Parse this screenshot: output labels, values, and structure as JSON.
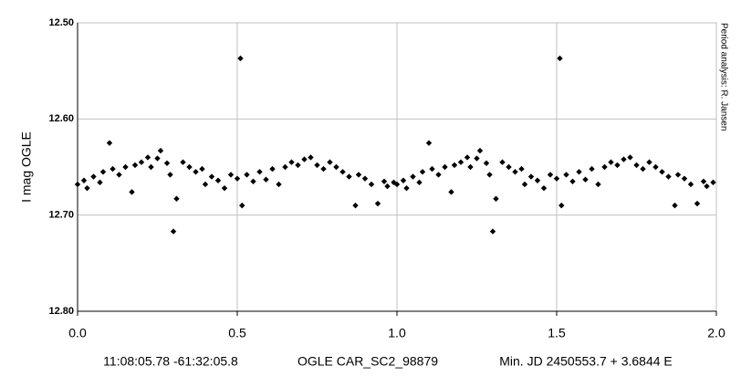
{
  "chart_data": {
    "type": "scatter",
    "y_label": "I mag OGLE",
    "side_note": "Period analysis: R. Jansen",
    "footer": [
      "11:08:05.78 -61:32:05.8",
      "OGLE CAR_SC2_98879",
      "Min. JD 2450553.7 + 3.6844 E"
    ],
    "color": "#000000",
    "grid": true,
    "y_inverted": true,
    "xlim": [
      0,
      2
    ],
    "xticks": [
      {
        "value": 0,
        "label": "0.0"
      },
      {
        "value": 0.5,
        "label": "0.5"
      },
      {
        "value": 1,
        "label": "1.0"
      },
      {
        "value": 1.5,
        "label": "1.5"
      },
      {
        "value": 2,
        "label": "2.0"
      }
    ],
    "ylim": [
      12.5,
      12.8
    ],
    "yticks": [
      {
        "value": 12.5,
        "label": "12.50"
      },
      {
        "value": 12.6,
        "label": "12.60"
      },
      {
        "value": 12.7,
        "label": "12.70"
      },
      {
        "value": 12.8,
        "label": "12.80"
      }
    ],
    "x": [
      0.0,
      0.02,
      0.03,
      0.05,
      0.07,
      0.08,
      0.1,
      0.11,
      0.13,
      0.15,
      0.17,
      0.18,
      0.2,
      0.22,
      0.23,
      0.25,
      0.26,
      0.28,
      0.29,
      0.3,
      0.31,
      0.33,
      0.35,
      0.37,
      0.39,
      0.4,
      0.42,
      0.44,
      0.46,
      0.48,
      0.5,
      0.51,
      0.515,
      0.53,
      0.55,
      0.57,
      0.59,
      0.61,
      0.63,
      0.65,
      0.67,
      0.69,
      0.71,
      0.73,
      0.75,
      0.77,
      0.79,
      0.81,
      0.83,
      0.85,
      0.87,
      0.88,
      0.9,
      0.92,
      0.94,
      0.96,
      0.97,
      0.99,
      1.0,
      1.02,
      1.03,
      1.05,
      1.07,
      1.08,
      1.1,
      1.11,
      1.13,
      1.15,
      1.17,
      1.18,
      1.2,
      1.22,
      1.23,
      1.25,
      1.26,
      1.28,
      1.29,
      1.3,
      1.31,
      1.33,
      1.35,
      1.37,
      1.39,
      1.4,
      1.42,
      1.44,
      1.46,
      1.48,
      1.5,
      1.51,
      1.515,
      1.53,
      1.55,
      1.57,
      1.59,
      1.61,
      1.63,
      1.65,
      1.67,
      1.69,
      1.71,
      1.73,
      1.75,
      1.77,
      1.79,
      1.81,
      1.83,
      1.85,
      1.87,
      1.88,
      1.9,
      1.92,
      1.94,
      1.96,
      1.97,
      1.99
    ],
    "values": [
      12.668,
      12.664,
      12.672,
      12.66,
      12.666,
      12.655,
      12.625,
      12.652,
      12.658,
      12.65,
      12.676,
      12.648,
      12.645,
      12.64,
      12.65,
      12.641,
      12.633,
      12.646,
      12.658,
      12.717,
      12.683,
      12.645,
      12.65,
      12.655,
      12.652,
      12.668,
      12.66,
      12.664,
      12.672,
      12.658,
      12.662,
      12.537,
      12.69,
      12.658,
      12.665,
      12.655,
      12.663,
      12.652,
      12.668,
      12.65,
      12.645,
      12.648,
      12.642,
      12.64,
      12.648,
      12.652,
      12.645,
      12.65,
      12.655,
      12.66,
      12.69,
      12.658,
      12.662,
      12.668,
      12.688,
      12.665,
      12.67,
      12.666,
      12.668,
      12.664,
      12.672,
      12.66,
      12.666,
      12.655,
      12.625,
      12.652,
      12.658,
      12.65,
      12.676,
      12.648,
      12.645,
      12.64,
      12.65,
      12.641,
      12.633,
      12.646,
      12.658,
      12.717,
      12.683,
      12.645,
      12.65,
      12.655,
      12.652,
      12.668,
      12.66,
      12.664,
      12.672,
      12.658,
      12.662,
      12.537,
      12.69,
      12.658,
      12.665,
      12.655,
      12.663,
      12.652,
      12.668,
      12.65,
      12.645,
      12.648,
      12.642,
      12.64,
      12.648,
      12.652,
      12.645,
      12.65,
      12.655,
      12.66,
      12.69,
      12.658,
      12.662,
      12.668,
      12.688,
      12.665,
      12.67,
      12.666
    ]
  }
}
